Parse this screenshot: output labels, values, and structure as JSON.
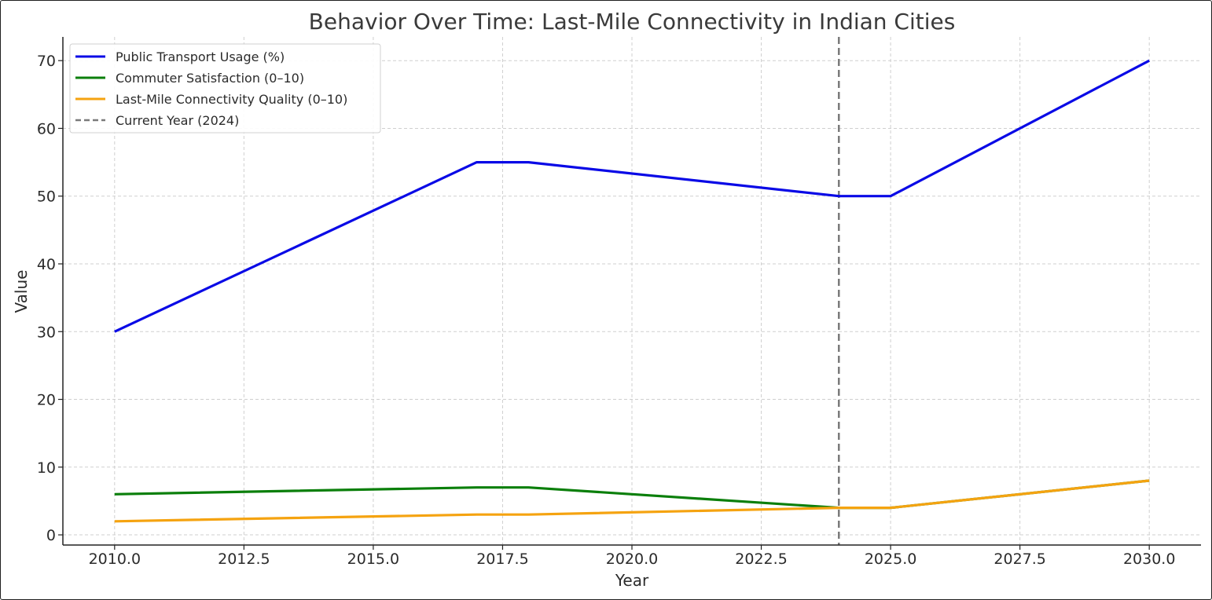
{
  "chart_data": {
    "type": "line",
    "title": "Behavior Over Time: Last-Mile Connectivity in Indian Cities",
    "xlabel": "Year",
    "ylabel": "Value",
    "xlim": [
      2009,
      2031
    ],
    "ylim": [
      -1.5,
      73.5
    ],
    "x_ticks": [
      "2010.0",
      "2012.5",
      "2015.0",
      "2017.5",
      "2020.0",
      "2022.5",
      "2025.0",
      "2027.5",
      "2030.0"
    ],
    "y_ticks": [
      "0",
      "10",
      "20",
      "30",
      "40",
      "50",
      "60",
      "70"
    ],
    "grid": true,
    "legend_position": "top-left",
    "series": [
      {
        "name": "Public Transport Usage (%)",
        "color": "#0a0ae6",
        "x": [
          2010,
          2017,
          2018,
          2024,
          2025,
          2030
        ],
        "y": [
          30,
          55,
          55,
          50,
          50,
          70
        ]
      },
      {
        "name": "Commuter Satisfaction (0–10)",
        "color": "#0b7f0b",
        "x": [
          2010,
          2017,
          2018,
          2024,
          2025,
          2030
        ],
        "y": [
          6,
          7,
          7,
          4,
          4,
          8
        ]
      },
      {
        "name": "Last-Mile Connectivity Quality (0–10)",
        "color": "#f5a310",
        "x": [
          2010,
          2017,
          2018,
          2024,
          2025,
          2030
        ],
        "y": [
          2,
          3,
          3,
          4,
          4,
          8
        ]
      }
    ],
    "vline": {
      "name": "Current Year (2024)",
      "x": 2024,
      "color": "#7a7a7a"
    }
  }
}
